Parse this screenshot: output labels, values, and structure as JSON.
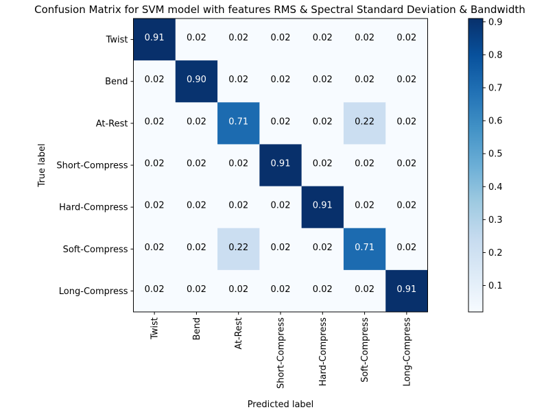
{
  "chart_data": {
    "type": "heatmap",
    "title": "Confusion Matrix for SVM model with features RMS & Spectral Standard Deviation & Bandwidth",
    "xlabel": "Predicted label",
    "ylabel": "True label",
    "classes": [
      "Twist",
      "Bend",
      "At-Rest",
      "Short-Compress",
      "Hard-Compress",
      "Soft-Compress",
      "Long-Compress"
    ],
    "matrix": [
      [
        0.91,
        0.02,
        0.02,
        0.02,
        0.02,
        0.02,
        0.02
      ],
      [
        0.02,
        0.9,
        0.02,
        0.02,
        0.02,
        0.02,
        0.02
      ],
      [
        0.02,
        0.02,
        0.71,
        0.02,
        0.02,
        0.22,
        0.02
      ],
      [
        0.02,
        0.02,
        0.02,
        0.91,
        0.02,
        0.02,
        0.02
      ],
      [
        0.02,
        0.02,
        0.02,
        0.02,
        0.91,
        0.02,
        0.02
      ],
      [
        0.02,
        0.02,
        0.22,
        0.02,
        0.02,
        0.71,
        0.02
      ],
      [
        0.02,
        0.02,
        0.02,
        0.02,
        0.02,
        0.02,
        0.91
      ]
    ],
    "cell_labels": [
      [
        "0.91",
        "0.02",
        "0.02",
        "0.02",
        "0.02",
        "0.02",
        "0.02"
      ],
      [
        "0.02",
        "0.90",
        "0.02",
        "0.02",
        "0.02",
        "0.02",
        "0.02"
      ],
      [
        "0.02",
        "0.02",
        "0.71",
        "0.02",
        "0.02",
        "0.22",
        "0.02"
      ],
      [
        "0.02",
        "0.02",
        "0.02",
        "0.91",
        "0.02",
        "0.02",
        "0.02"
      ],
      [
        "0.02",
        "0.02",
        "0.02",
        "0.02",
        "0.91",
        "0.02",
        "0.02"
      ],
      [
        "0.02",
        "0.02",
        "0.22",
        "0.02",
        "0.02",
        "0.71",
        "0.02"
      ],
      [
        "0.02",
        "0.02",
        "0.02",
        "0.02",
        "0.02",
        "0.02",
        "0.91"
      ]
    ],
    "colormap": "Blues",
    "colorbar": {
      "range": [
        0.02,
        0.91
      ],
      "ticks": [
        0.1,
        0.2,
        0.3,
        0.4,
        0.5,
        0.6,
        0.7,
        0.8,
        0.9
      ],
      "tick_labels": [
        "0.1",
        "0.2",
        "0.3",
        "0.4",
        "0.5",
        "0.6",
        "0.7",
        "0.8",
        "0.9"
      ]
    },
    "text_color_light": "#ffffff",
    "text_color_dark": "#000000",
    "grid": false,
    "legend": "colorbar-right"
  }
}
